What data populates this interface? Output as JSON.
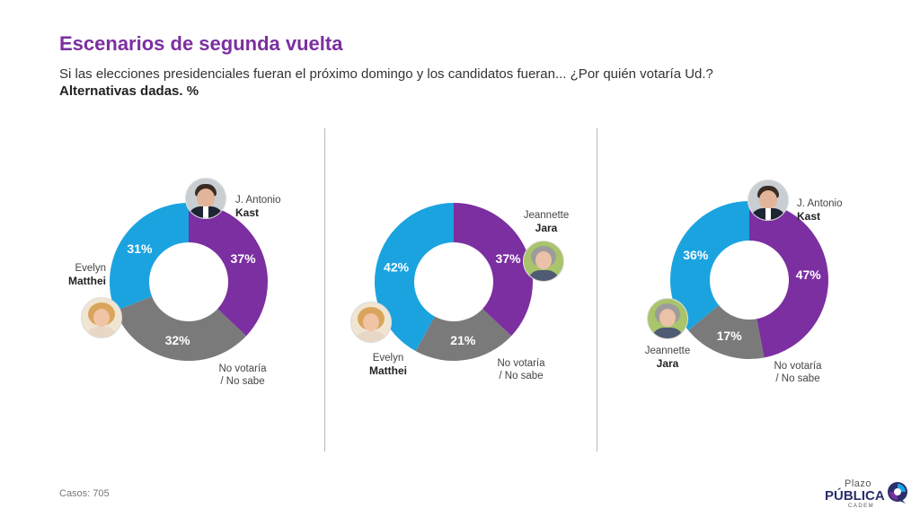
{
  "header": {
    "title": "Escenarios de segunda vuelta",
    "subtitle": "Si las elecciones presidenciales fueran el próximo domingo y los candidatos fueran... ¿Por quién votaría Ud.?",
    "note": "Alternativas dadas. %"
  },
  "colors": {
    "purple": "#7b2fa0",
    "blue": "#1ba3e0",
    "gray": "#7a7a7a"
  },
  "chart_data": [
    {
      "type": "pie",
      "slices": [
        {
          "label_line1": "J. Antonio",
          "label_line2": "Kast",
          "value": 37,
          "value_label": "37%",
          "color": "#7b2fa0"
        },
        {
          "label_line1": "No votaría",
          "label_line2": "/ No sabe",
          "value": 32,
          "value_label": "32%",
          "color": "#7a7a7a"
        },
        {
          "label_line1": "Evelyn",
          "label_line2": "Matthei",
          "value": 31,
          "value_label": "31%",
          "color": "#1ba3e0"
        }
      ]
    },
    {
      "type": "pie",
      "slices": [
        {
          "label_line1": "Jeannette",
          "label_line2": "Jara",
          "value": 37,
          "value_label": "37%",
          "color": "#7b2fa0"
        },
        {
          "label_line1": "No votaría",
          "label_line2": "/ No sabe",
          "value": 21,
          "value_label": "21%",
          "color": "#7a7a7a"
        },
        {
          "label_line1": "Evelyn",
          "label_line2": "Matthei",
          "value": 42,
          "value_label": "42%",
          "color": "#1ba3e0"
        }
      ]
    },
    {
      "type": "pie",
      "slices": [
        {
          "label_line1": "J. Antonio",
          "label_line2": "Kast",
          "value": 47,
          "value_label": "47%",
          "color": "#7b2fa0"
        },
        {
          "label_line1": "No votaría",
          "label_line2": "/ No sabe",
          "value": 17,
          "value_label": "17%",
          "color": "#7a7a7a"
        },
        {
          "label_line1": "Jeannette",
          "label_line2": "Jara",
          "value": 36,
          "value_label": "36%",
          "color": "#1ba3e0"
        }
      ]
    }
  ],
  "footer": {
    "cases": "Casos: 705"
  },
  "logo": {
    "line1": "Plazo",
    "line2": "PÚBLICA",
    "line3": "CADEM"
  }
}
